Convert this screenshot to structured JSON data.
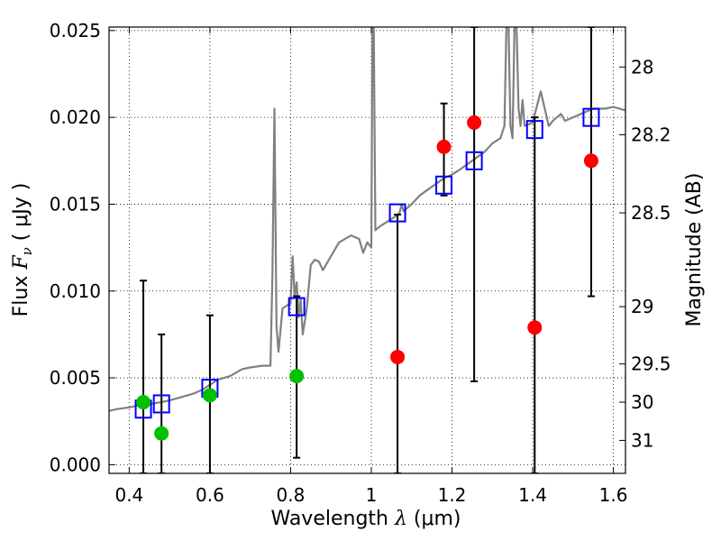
{
  "chart_data": {
    "type": "scatter",
    "xlabel": "Wavelength  λ (μm)",
    "xlabel_parts": {
      "prefix": "Wavelength  ",
      "symbol": "λ",
      "unit": " (μm)"
    },
    "ylabel": "Flux  Fν  ( μJy )",
    "ylabel_parts": {
      "prefix": "Flux  ",
      "symbol": "F",
      "sub": "ν",
      "unit": "  ( μJy )"
    },
    "y2label": "Magnitude (AB)",
    "xlim": [
      0.35,
      1.63
    ],
    "ylim": [
      -0.0005,
      0.0252
    ],
    "grid": true,
    "x_ticks": [
      {
        "value": 0.4,
        "label": "0.4"
      },
      {
        "value": 0.6,
        "label": "0.6"
      },
      {
        "value": 0.8,
        "label": "0.8"
      },
      {
        "value": 1.0,
        "label": "1"
      },
      {
        "value": 1.2,
        "label": "1.2"
      },
      {
        "value": 1.4,
        "label": "1.4"
      },
      {
        "value": 1.6,
        "label": "1.6"
      }
    ],
    "y_ticks": [
      {
        "value": 0.0,
        "label": "0.000"
      },
      {
        "value": 0.005,
        "label": "0.005"
      },
      {
        "value": 0.01,
        "label": "0.010"
      },
      {
        "value": 0.015,
        "label": "0.015"
      },
      {
        "value": 0.02,
        "label": "0.020"
      },
      {
        "value": 0.025,
        "label": "0.025"
      }
    ],
    "mag_ticks": [
      {
        "label": "28",
        "flux": 0.0229
      },
      {
        "label": "28.2",
        "flux": 0.019
      },
      {
        "label": "28.5",
        "flux": 0.0145
      },
      {
        "label": "29",
        "flux": 0.0091
      },
      {
        "label": "29.5",
        "flux": 0.0058
      },
      {
        "label": "30",
        "flux": 0.0036
      },
      {
        "label": "31",
        "flux": 0.0014
      }
    ],
    "colors": {
      "model": "#808080",
      "model_squares": "#0000ff",
      "detections": "#00c000",
      "upper_limits": "#ff0000",
      "errorbars": "#000000"
    },
    "series": [
      {
        "name": "model spectrum",
        "kind": "line",
        "x": [
          0.35,
          0.37,
          0.4,
          0.42,
          0.45,
          0.48,
          0.5,
          0.53,
          0.56,
          0.58,
          0.6,
          0.62,
          0.65,
          0.68,
          0.7,
          0.73,
          0.75,
          0.755,
          0.76,
          0.765,
          0.77,
          0.78,
          0.8,
          0.805,
          0.81,
          0.815,
          0.82,
          0.825,
          0.83,
          0.84,
          0.85,
          0.86,
          0.87,
          0.88,
          0.9,
          0.92,
          0.95,
          0.97,
          0.98,
          0.99,
          1.0,
          1.003,
          1.006,
          1.01,
          1.02,
          1.04,
          1.06,
          1.07,
          1.075,
          1.08,
          1.1,
          1.12,
          1.15,
          1.18,
          1.2,
          1.22,
          1.25,
          1.28,
          1.3,
          1.32,
          1.33,
          1.335,
          1.34,
          1.345,
          1.35,
          1.355,
          1.36,
          1.365,
          1.37,
          1.375,
          1.38,
          1.4,
          1.42,
          1.44,
          1.45,
          1.46,
          1.47,
          1.48,
          1.5,
          1.52,
          1.55,
          1.58,
          1.6,
          1.63
        ],
        "y": [
          0.0031,
          0.0032,
          0.0033,
          0.0034,
          0.0035,
          0.0036,
          0.0037,
          0.0039,
          0.0041,
          0.0043,
          0.0046,
          0.0049,
          0.0051,
          0.0055,
          0.0056,
          0.0057,
          0.0057,
          0.011,
          0.0205,
          0.008,
          0.0065,
          0.009,
          0.0093,
          0.012,
          0.0097,
          0.0105,
          0.0085,
          0.0095,
          0.0075,
          0.009,
          0.0115,
          0.0118,
          0.0117,
          0.0112,
          0.012,
          0.0128,
          0.0132,
          0.013,
          0.0122,
          0.0128,
          0.0125,
          0.0253,
          0.0253,
          0.0135,
          0.0137,
          0.014,
          0.0143,
          0.0145,
          0.015,
          0.0146,
          0.015,
          0.0155,
          0.016,
          0.0165,
          0.0167,
          0.017,
          0.0175,
          0.018,
          0.0185,
          0.0188,
          0.0195,
          0.0253,
          0.0253,
          0.0195,
          0.0188,
          0.0253,
          0.0253,
          0.0205,
          0.0195,
          0.021,
          0.0195,
          0.0197,
          0.0215,
          0.0195,
          0.0198,
          0.02,
          0.0202,
          0.0198,
          0.02,
          0.0202,
          0.0205,
          0.0205,
          0.0206,
          0.0204
        ]
      },
      {
        "name": "model photometry",
        "kind": "square",
        "x": [
          0.435,
          0.48,
          0.6,
          0.815,
          1.065,
          1.18,
          1.255,
          1.405,
          1.545
        ],
        "y": [
          0.0032,
          0.0035,
          0.0044,
          0.0091,
          0.0145,
          0.0161,
          0.0175,
          0.0193,
          0.02
        ]
      },
      {
        "name": "detections",
        "kind": "circle",
        "x": [
          0.435,
          0.48,
          0.6,
          0.815
        ],
        "y": [
          0.0036,
          0.0018,
          0.004,
          0.0051
        ]
      },
      {
        "name": "upper limits",
        "kind": "circle",
        "x": [
          1.065,
          1.18,
          1.255,
          1.405,
          1.545
        ],
        "y": [
          0.0062,
          0.0183,
          0.0197,
          0.0079,
          0.0175
        ]
      }
    ],
    "errorbars": [
      {
        "x": 0.435,
        "low": -0.0005,
        "high": 0.0106
      },
      {
        "x": 0.48,
        "low": -0.0005,
        "high": 0.0075
      },
      {
        "x": 0.6,
        "low": -0.0005,
        "high": 0.0086
      },
      {
        "x": 0.815,
        "low": 0.0004,
        "high": 0.0097
      },
      {
        "x": 1.065,
        "low": -0.0005,
        "high": 0.0144
      },
      {
        "x": 1.18,
        "low": 0.0155,
        "high": 0.0208
      },
      {
        "x": 1.255,
        "low": 0.0048,
        "high": 0.0252
      },
      {
        "x": 1.405,
        "low": -0.0005,
        "high": 0.02
      },
      {
        "x": 1.545,
        "low": 0.0097,
        "high": 0.0252
      }
    ]
  }
}
